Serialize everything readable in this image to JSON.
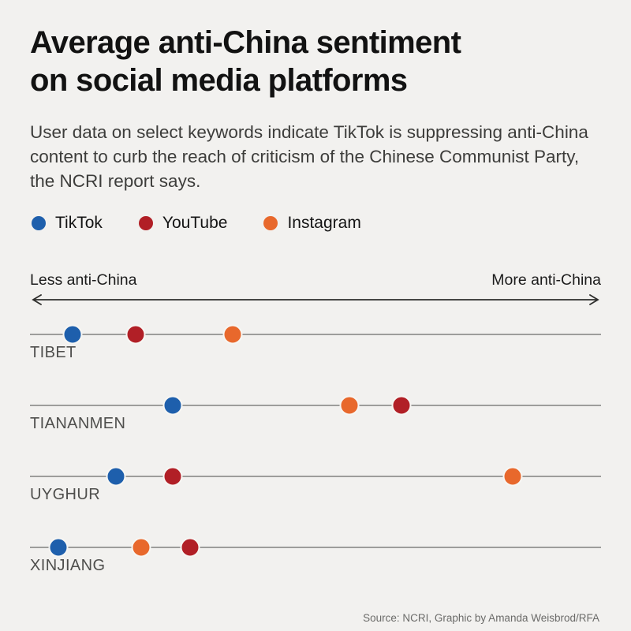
{
  "page": {
    "background": "#f2f1ef"
  },
  "header": {
    "title_line1": "Average anti-China sentiment",
    "title_line2": "on social media platforms",
    "subtitle": "User data on select keywords indicate TikTok is suppressing anti-China content to curb the reach of criticism of the Chinese Communist Party, the NCRI report says."
  },
  "legend": {
    "items": [
      {
        "label": "TikTok",
        "color": "#1e5fac"
      },
      {
        "label": "YouTube",
        "color": "#b11f26"
      },
      {
        "label": "Instagram",
        "color": "#e8682c"
      }
    ]
  },
  "chart_data": {
    "type": "scatter",
    "title": "Average anti-China sentiment on social media platforms",
    "xlabel_left": "Less anti-China",
    "xlabel_right": "More anti-China",
    "x_unit": "relative position along unlabeled axis, 0 = least anti-China, 100 = most anti-China",
    "axis_range": [
      0,
      100
    ],
    "grid": false,
    "series": [
      "TikTok",
      "YouTube",
      "Instagram"
    ],
    "colors": {
      "TikTok": "#1e5fac",
      "YouTube": "#b11f26",
      "Instagram": "#e8682c"
    },
    "rows": [
      {
        "category": "TIBET",
        "values": {
          "TikTok": 7.5,
          "YouTube": 18.5,
          "Instagram": 35.5
        }
      },
      {
        "category": "TIANANMEN",
        "values": {
          "TikTok": 25,
          "YouTube": 65,
          "Instagram": 56
        }
      },
      {
        "category": "UYGHUR",
        "values": {
          "TikTok": 15,
          "YouTube": 25,
          "Instagram": 84.5
        }
      },
      {
        "category": "XINJIANG",
        "values": {
          "TikTok": 5,
          "YouTube": 28,
          "Instagram": 19.5
        }
      }
    ]
  },
  "footer": {
    "source": "Source: NCRI, Graphic by Amanda Weisbrod/RFA"
  }
}
